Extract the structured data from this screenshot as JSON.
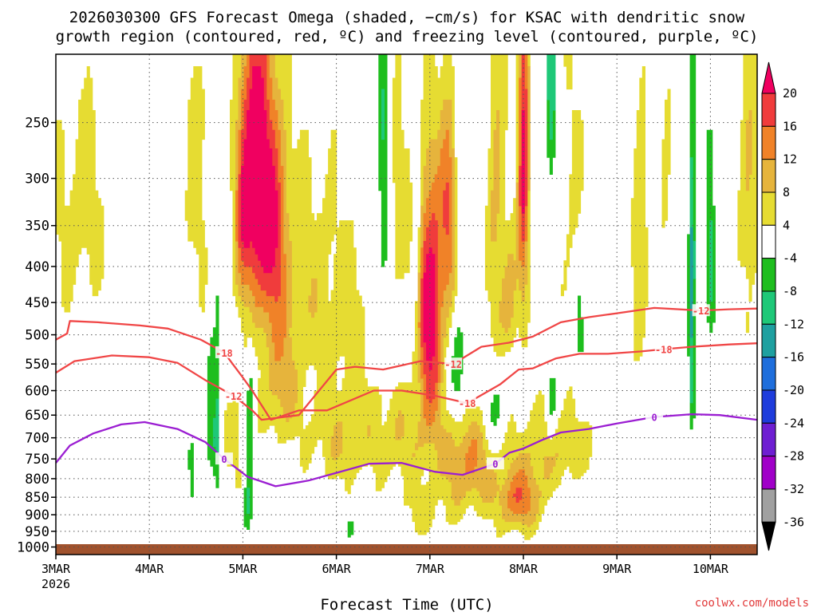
{
  "chart_data": {
    "type": "heatmap",
    "title_line1": "2026030300 GFS Forecast Omega (shaded, −cm/s) for KSAC with dendritic snow",
    "title_line2": "growth region (contoured, red, ºC) and freezing level (contoured, purple, ºC)",
    "xlabel": "Forecast Time (UTC)",
    "ylabel": "",
    "credit": "coolwx.com/models",
    "x_ticks": [
      "3MAR",
      "4MAR",
      "5MAR",
      "6MAR",
      "7MAR",
      "8MAR",
      "9MAR",
      "10MAR"
    ],
    "x_tick_year": "2026",
    "xlim_days": [
      0,
      7.5
    ],
    "y_ticks": [
      "250",
      "300",
      "350",
      "400",
      "450",
      "500",
      "550",
      "600",
      "650",
      "700",
      "750",
      "800",
      "850",
      "900",
      "950",
      "1000"
    ],
    "ylim_hpa": [
      200,
      1025
    ],
    "colorbar": {
      "labels": [
        "20",
        "16",
        "12",
        "8",
        "4",
        "-4",
        "-8",
        "-12",
        "-16",
        "-20",
        "-24",
        "-28",
        "-32",
        "-36"
      ],
      "colors": [
        "#f00060",
        "#f03c3c",
        "#f08228",
        "#e6b43c",
        "#e6dc32",
        "#ffffff",
        "#1ebe1e",
        "#1ec878",
        "#1ea0a0",
        "#1e6edc",
        "#1e3cdc",
        "#6e1ed2",
        "#a000c8",
        "#a0a0a0",
        "#000000"
      ]
    },
    "contours": [
      {
        "name": "-18 isotherm",
        "label": "-18",
        "color": "#f04646",
        "points": [
          [
            0,
            508
          ],
          [
            0.12,
            498
          ],
          [
            0.15,
            478
          ],
          [
            0.45,
            480
          ],
          [
            0.9,
            485
          ],
          [
            1.2,
            490
          ],
          [
            1.55,
            508
          ],
          [
            1.8,
            530
          ],
          [
            2.0,
            575
          ],
          [
            2.1,
            600
          ],
          [
            2.3,
            660
          ],
          [
            2.6,
            640
          ],
          [
            2.9,
            640
          ],
          [
            3.4,
            600
          ],
          [
            3.7,
            600
          ],
          [
            4.05,
            610
          ],
          [
            4.4,
            625
          ],
          [
            4.75,
            588
          ],
          [
            4.95,
            560
          ],
          [
            5.1,
            558
          ],
          [
            5.35,
            540
          ],
          [
            5.6,
            532
          ],
          [
            5.9,
            532
          ],
          [
            6.25,
            528
          ],
          [
            6.5,
            524
          ],
          [
            6.8,
            520
          ],
          [
            7.2,
            516
          ],
          [
            7.5,
            514
          ]
        ]
      },
      {
        "name": "-12 isotherm",
        "label": "-12",
        "color": "#f04646",
        "points": [
          [
            0,
            566
          ],
          [
            0.2,
            545
          ],
          [
            0.6,
            535
          ],
          [
            1.0,
            538
          ],
          [
            1.3,
            548
          ],
          [
            1.6,
            580
          ],
          [
            1.9,
            610
          ],
          [
            2.1,
            640
          ],
          [
            2.2,
            660
          ],
          [
            2.6,
            650
          ],
          [
            3.0,
            560
          ],
          [
            3.2,
            555
          ],
          [
            3.5,
            560
          ],
          [
            3.9,
            545
          ],
          [
            4.25,
            550
          ],
          [
            4.55,
            520
          ],
          [
            4.85,
            513
          ],
          [
            5.1,
            503
          ],
          [
            5.4,
            480
          ],
          [
            5.7,
            472
          ],
          [
            6.0,
            466
          ],
          [
            6.4,
            458
          ],
          [
            6.9,
            462
          ],
          [
            7.2,
            460
          ],
          [
            7.5,
            459
          ]
        ]
      },
      {
        "name": "0 isotherm (freezing level)",
        "label": "0",
        "color": "#9b1ed2",
        "points": [
          [
            0,
            760
          ],
          [
            0.15,
            718
          ],
          [
            0.4,
            690
          ],
          [
            0.7,
            670
          ],
          [
            0.95,
            665
          ],
          [
            1.3,
            680
          ],
          [
            1.6,
            710
          ],
          [
            1.8,
            750
          ],
          [
            2.05,
            795
          ],
          [
            2.35,
            820
          ],
          [
            2.7,
            805
          ],
          [
            3.0,
            785
          ],
          [
            3.35,
            762
          ],
          [
            3.7,
            760
          ],
          [
            4.05,
            782
          ],
          [
            4.35,
            790
          ],
          [
            4.7,
            762
          ],
          [
            4.85,
            735
          ],
          [
            5.0,
            725
          ],
          [
            5.2,
            705
          ],
          [
            5.4,
            688
          ],
          [
            5.7,
            680
          ],
          [
            6.0,
            668
          ],
          [
            6.4,
            654
          ],
          [
            6.8,
            648
          ],
          [
            7.1,
            650
          ],
          [
            7.5,
            660
          ]
        ]
      }
    ]
  }
}
